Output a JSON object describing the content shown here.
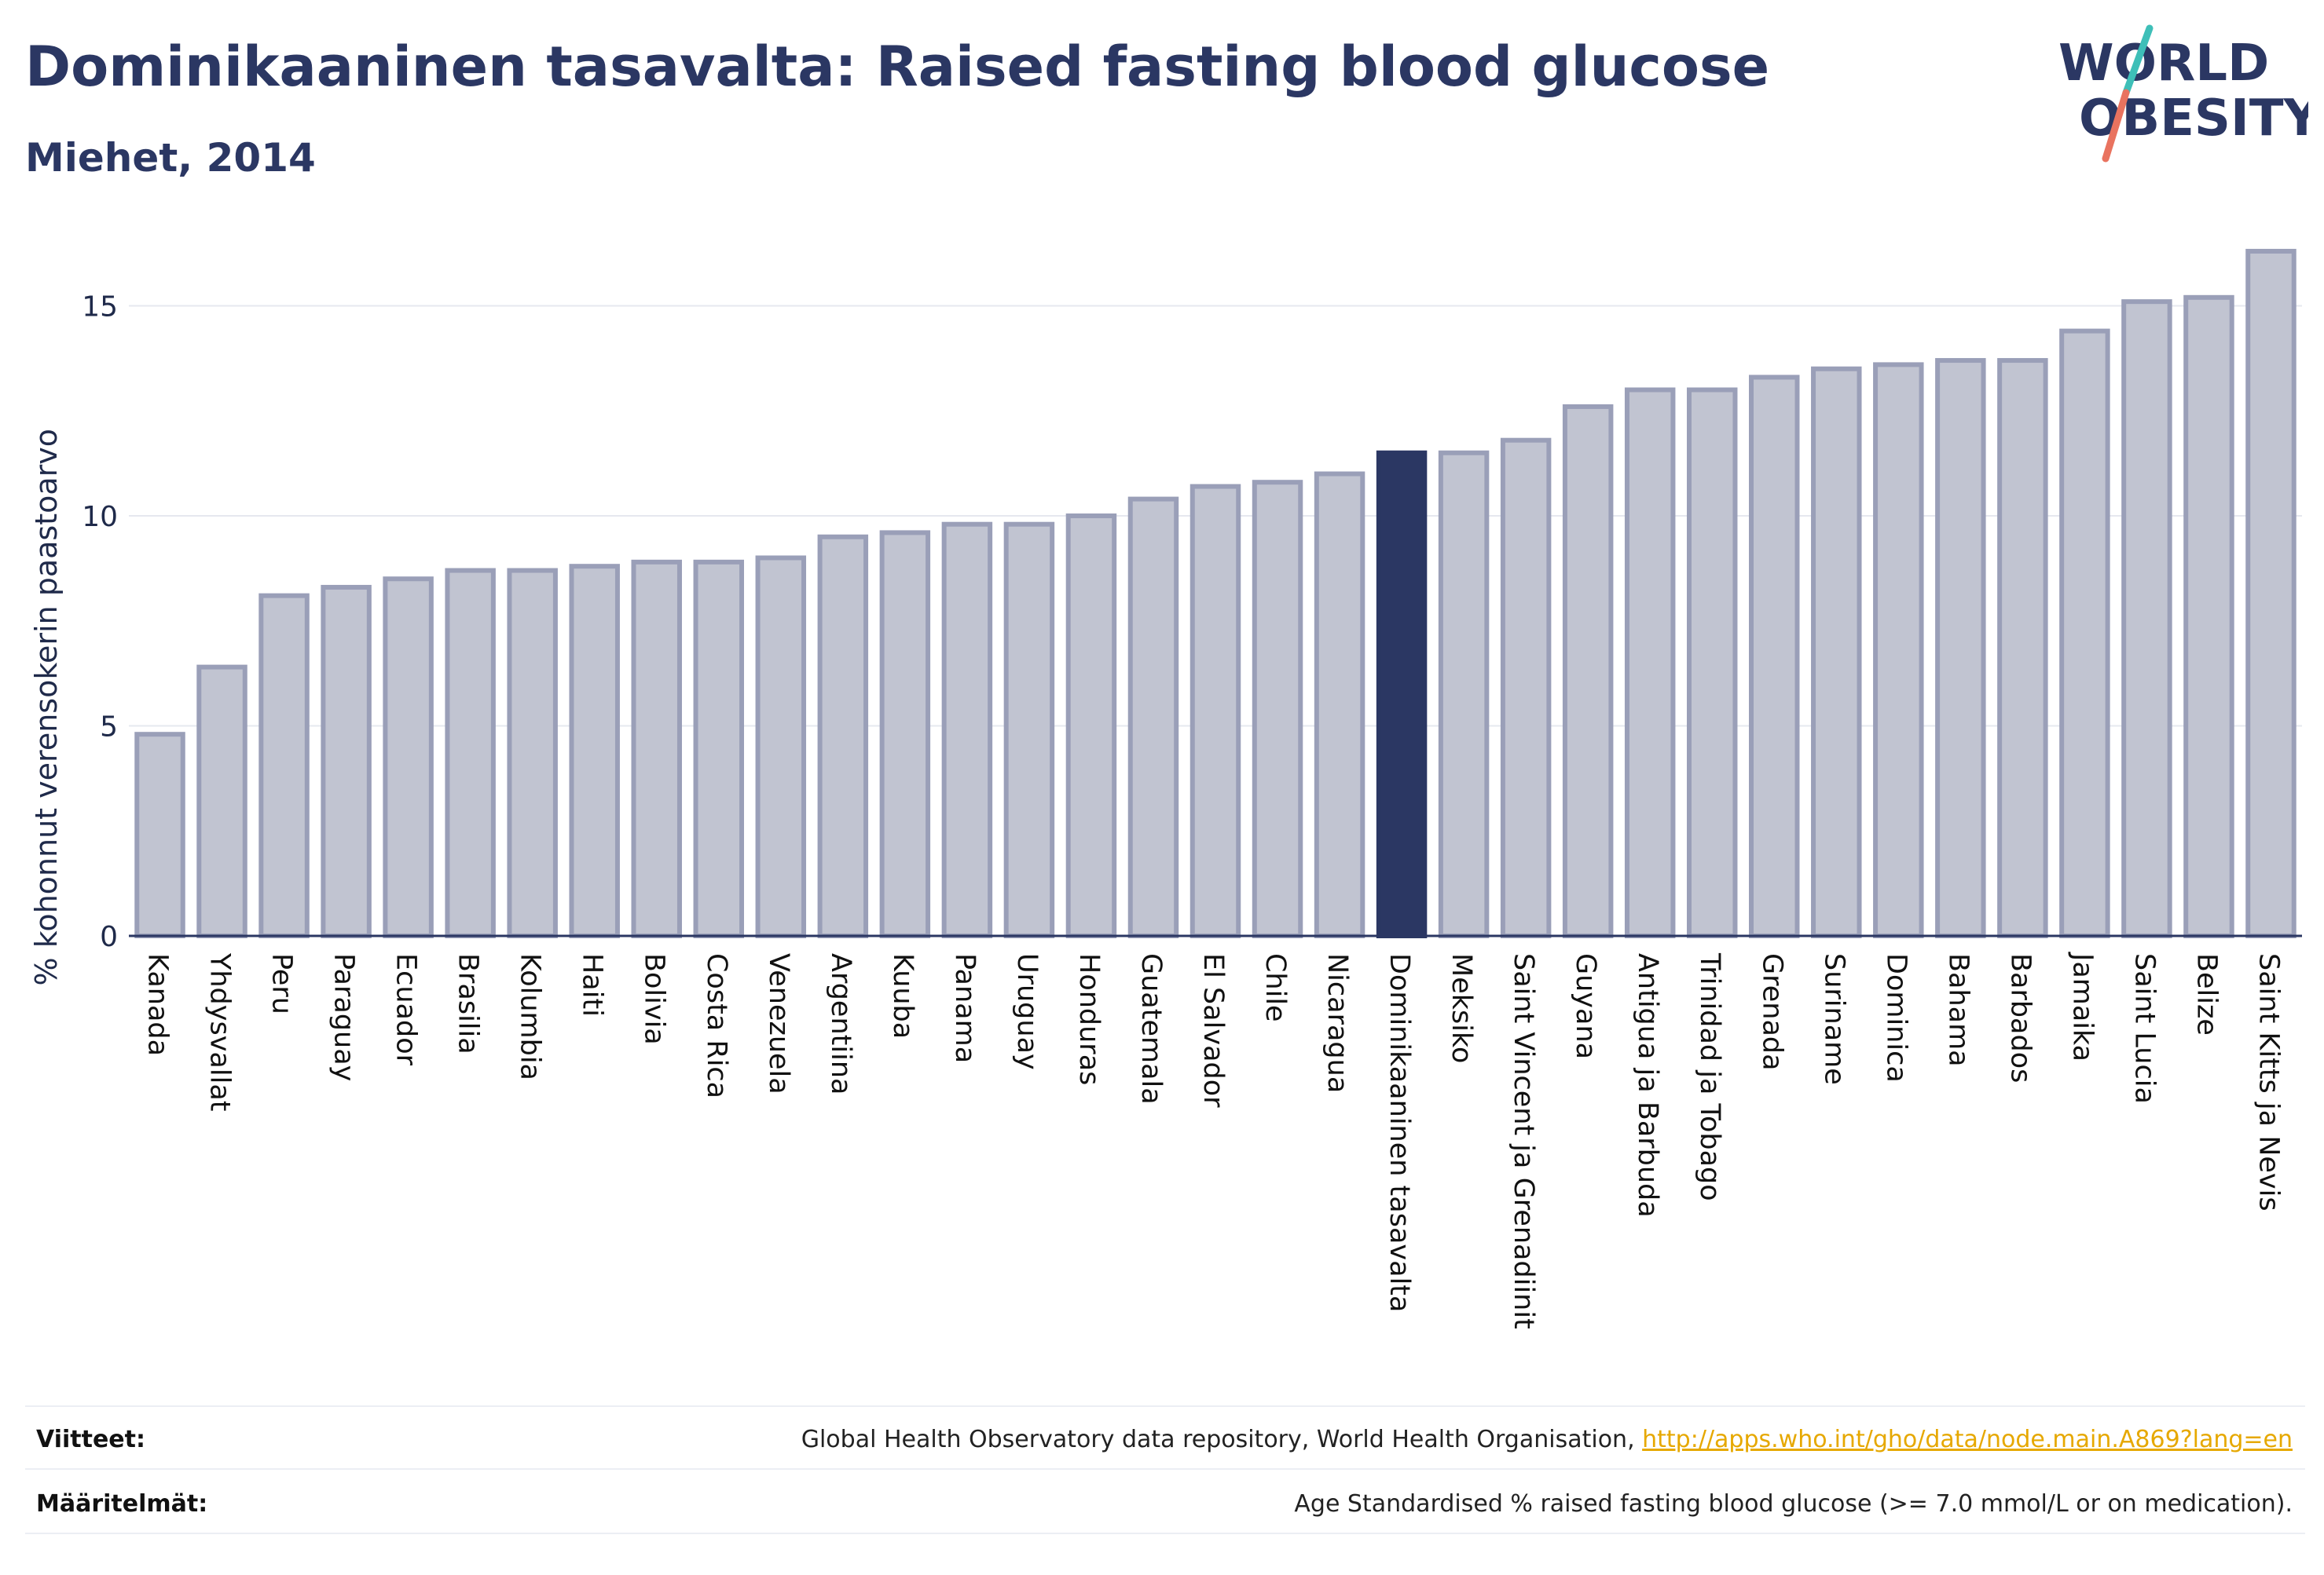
{
  "header": {
    "title": "Dominikaaninen tasavalta: Raised fasting blood glucose",
    "subtitle": "Miehet, 2014"
  },
  "logo": {
    "line1": "WORLD",
    "line2": "OBESITY",
    "accent_teal": "#3ebfb8",
    "accent_coral": "#e9735f",
    "text_color": "#2b3763"
  },
  "colors": {
    "bar_fill": "#c1c4d1",
    "bar_stroke": "#9a9fb8",
    "highlight": "#2b3763",
    "grid": "#e6e8ef",
    "axis": "#2b3763"
  },
  "chart_data": {
    "type": "bar",
    "ylabel": "% kohonnut verensokerin paastoarvo",
    "ylim": [
      0,
      17.5
    ],
    "yticks": [
      0,
      5,
      10,
      15
    ],
    "grid": true,
    "highlight": "Dominikaaninen tasavalta",
    "categories": [
      "Kanada",
      "Yhdysvallat",
      "Peru",
      "Paraguay",
      "Ecuador",
      "Brasilia",
      "Kolumbia",
      "Haiti",
      "Bolivia",
      "Costa Rica",
      "Venezuela",
      "Argentiina",
      "Kuuba",
      "Panama",
      "Uruguay",
      "Honduras",
      "Guatemala",
      "El Salvador",
      "Chile",
      "Nicaragua",
      "Dominikaaninen tasavalta",
      "Meksiko",
      "Saint Vincent ja Grenadiinit",
      "Guyana",
      "Antigua ja Barbuda",
      "Trinidad ja Tobago",
      "Grenada",
      "Suriname",
      "Dominica",
      "Bahama",
      "Barbados",
      "Jamaika",
      "Saint Lucia",
      "Belize",
      "Saint Kitts ja Nevis"
    ],
    "values": [
      4.8,
      6.4,
      8.1,
      8.3,
      8.5,
      8.7,
      8.7,
      8.8,
      8.9,
      8.9,
      9.0,
      9.5,
      9.6,
      9.8,
      9.8,
      10.0,
      10.4,
      10.7,
      10.8,
      11.0,
      11.5,
      11.5,
      11.8,
      12.6,
      13.0,
      13.0,
      13.3,
      13.5,
      13.6,
      13.7,
      13.7,
      14.4,
      15.1,
      15.2,
      16.3
    ]
  },
  "footer": {
    "sources_label": "Viitteet:",
    "sources_text": "Global Health Observatory data repository, World Health Organisation, ",
    "sources_link": "http://apps.who.int/gho/data/node.main.A869?lang=en",
    "definitions_label": "Määritelmät:",
    "definitions_text": "Age Standardised % raised fasting blood glucose (>= 7.0 mmol/L or on medication)."
  }
}
